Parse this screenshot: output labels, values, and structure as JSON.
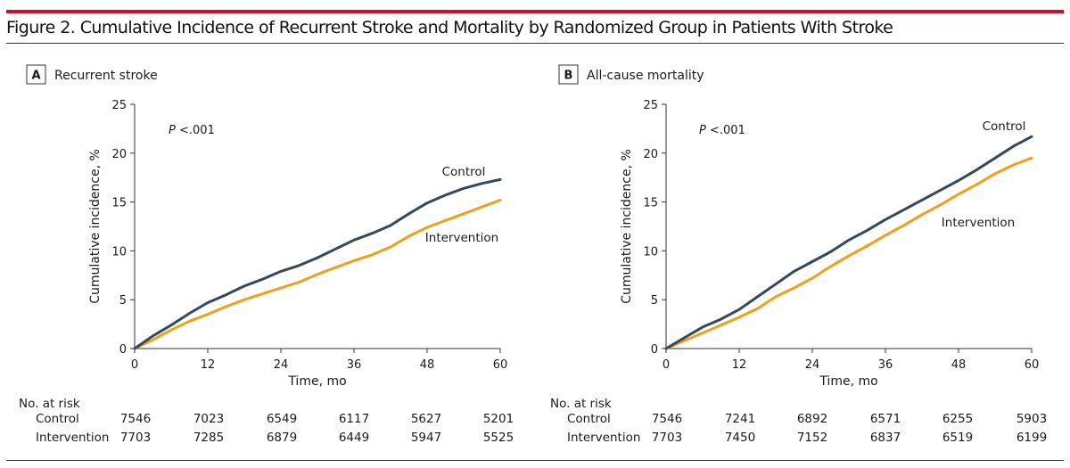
{
  "figure": {
    "title": "Figure 2. Cumulative Incidence of Recurrent Stroke and Mortality by Randomized Group in Patients With Stroke",
    "colors": {
      "accent_rule": "#c8102e",
      "control": "#34495a",
      "intervention": "#f0a01a",
      "axis": "#333333"
    }
  },
  "chart_data": [
    {
      "type": "line",
      "panel_letter": "A",
      "title": "Recurrent stroke",
      "annotation_p": "P",
      "annotation_value": "<.001",
      "xlabel": "Time, mo",
      "ylabel": "Cumulative incidence, %",
      "xlim": [
        0,
        60
      ],
      "ylim": [
        0,
        25
      ],
      "xticks": [
        0,
        12,
        24,
        36,
        48,
        60
      ],
      "yticks": [
        0,
        5,
        10,
        15,
        20,
        25
      ],
      "grid": false,
      "x": [
        0,
        3,
        6,
        9,
        12,
        15,
        18,
        21,
        24,
        27,
        30,
        33,
        36,
        39,
        42,
        45,
        48,
        51,
        54,
        57,
        60
      ],
      "series": [
        {
          "name": "Control",
          "color": "#34495a",
          "values": [
            0,
            1.3,
            2.4,
            3.6,
            4.7,
            5.5,
            6.4,
            7.1,
            7.9,
            8.5,
            9.3,
            10.2,
            11.1,
            11.8,
            12.6,
            13.8,
            14.9,
            15.7,
            16.4,
            16.9,
            17.3
          ]
        },
        {
          "name": "Intervention",
          "color": "#f0a01a",
          "values": [
            0,
            0.9,
            1.9,
            2.8,
            3.5,
            4.3,
            5.0,
            5.6,
            6.2,
            6.8,
            7.6,
            8.3,
            9.0,
            9.6,
            10.4,
            11.5,
            12.4,
            13.1,
            13.8,
            14.5,
            15.2
          ]
        }
      ],
      "risk_table": {
        "label": "No. at risk",
        "rows": [
          {
            "name": "Control",
            "values": [
              "7546",
              "7023",
              "6549",
              "6117",
              "5627",
              "5201"
            ]
          },
          {
            "name": "Intervention",
            "values": [
              "7703",
              "7285",
              "6879",
              "6449",
              "5947",
              "5525"
            ]
          }
        ]
      }
    },
    {
      "type": "line",
      "panel_letter": "B",
      "title": "All-cause mortality",
      "annotation_p": "P",
      "annotation_value": "<.001",
      "xlabel": "Time, mo",
      "ylabel": "Cumulative incidence, %",
      "xlim": [
        0,
        60
      ],
      "ylim": [
        0,
        25
      ],
      "xticks": [
        0,
        12,
        24,
        36,
        48,
        60
      ],
      "yticks": [
        0,
        5,
        10,
        15,
        20,
        25
      ],
      "grid": false,
      "x": [
        0,
        3,
        6,
        9,
        12,
        15,
        18,
        21,
        24,
        27,
        30,
        33,
        36,
        39,
        42,
        45,
        48,
        51,
        54,
        57,
        60
      ],
      "series": [
        {
          "name": "Control",
          "color": "#34495a",
          "values": [
            0,
            1.1,
            2.2,
            3.0,
            4.0,
            5.3,
            6.6,
            7.9,
            8.9,
            9.9,
            11.1,
            12.1,
            13.2,
            14.2,
            15.2,
            16.2,
            17.2,
            18.3,
            19.5,
            20.7,
            21.7
          ]
        },
        {
          "name": "Intervention",
          "color": "#f0a01a",
          "values": [
            0,
            0.8,
            1.6,
            2.4,
            3.2,
            4.1,
            5.3,
            6.2,
            7.2,
            8.4,
            9.5,
            10.5,
            11.6,
            12.6,
            13.7,
            14.7,
            15.8,
            16.8,
            17.9,
            18.8,
            19.5
          ]
        }
      ],
      "risk_table": {
        "label": "No. at risk",
        "rows": [
          {
            "name": "Control",
            "values": [
              "7546",
              "7241",
              "6892",
              "6571",
              "6255",
              "5903"
            ]
          },
          {
            "name": "Intervention",
            "values": [
              "7703",
              "7450",
              "7152",
              "6837",
              "6519",
              "6199"
            ]
          }
        ]
      }
    }
  ]
}
